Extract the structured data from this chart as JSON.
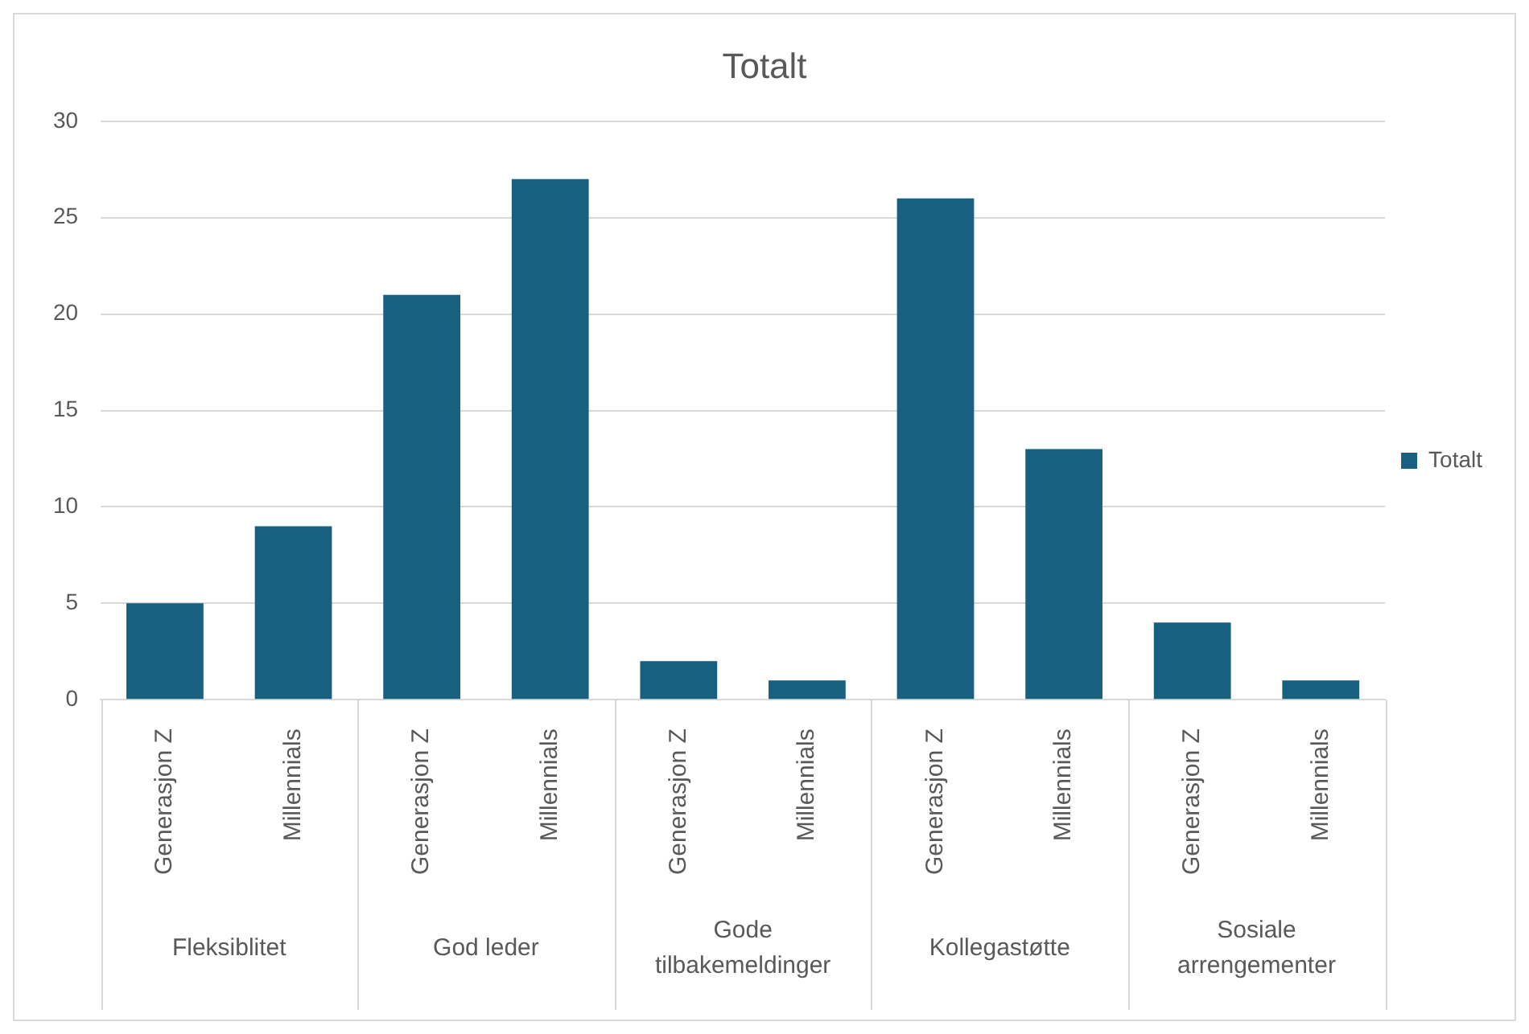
{
  "chart_data": {
    "type": "bar",
    "title": "Totalt",
    "categories": [
      "Generasjon Z",
      "Millennials",
      "Generasjon Z",
      "Millennials",
      "Generasjon Z",
      "Millennials",
      "Generasjon Z",
      "Millennials",
      "Generasjon Z",
      "Millennials"
    ],
    "annotations": [
      "Fleksiblitet",
      "God leder",
      "Gode tilbakemeldinger",
      "Kollegastøtte",
      "Sosiale arrengementer"
    ],
    "series": [
      {
        "name": "Totalt",
        "color": "#17607f",
        "values": [
          5,
          9,
          21,
          27,
          2,
          1,
          26,
          13,
          4,
          1
        ]
      }
    ],
    "ylim": [
      0,
      30
    ],
    "yticks": [
      0,
      5,
      10,
      15,
      20,
      25,
      30
    ],
    "grid": "y",
    "legend": "right"
  }
}
